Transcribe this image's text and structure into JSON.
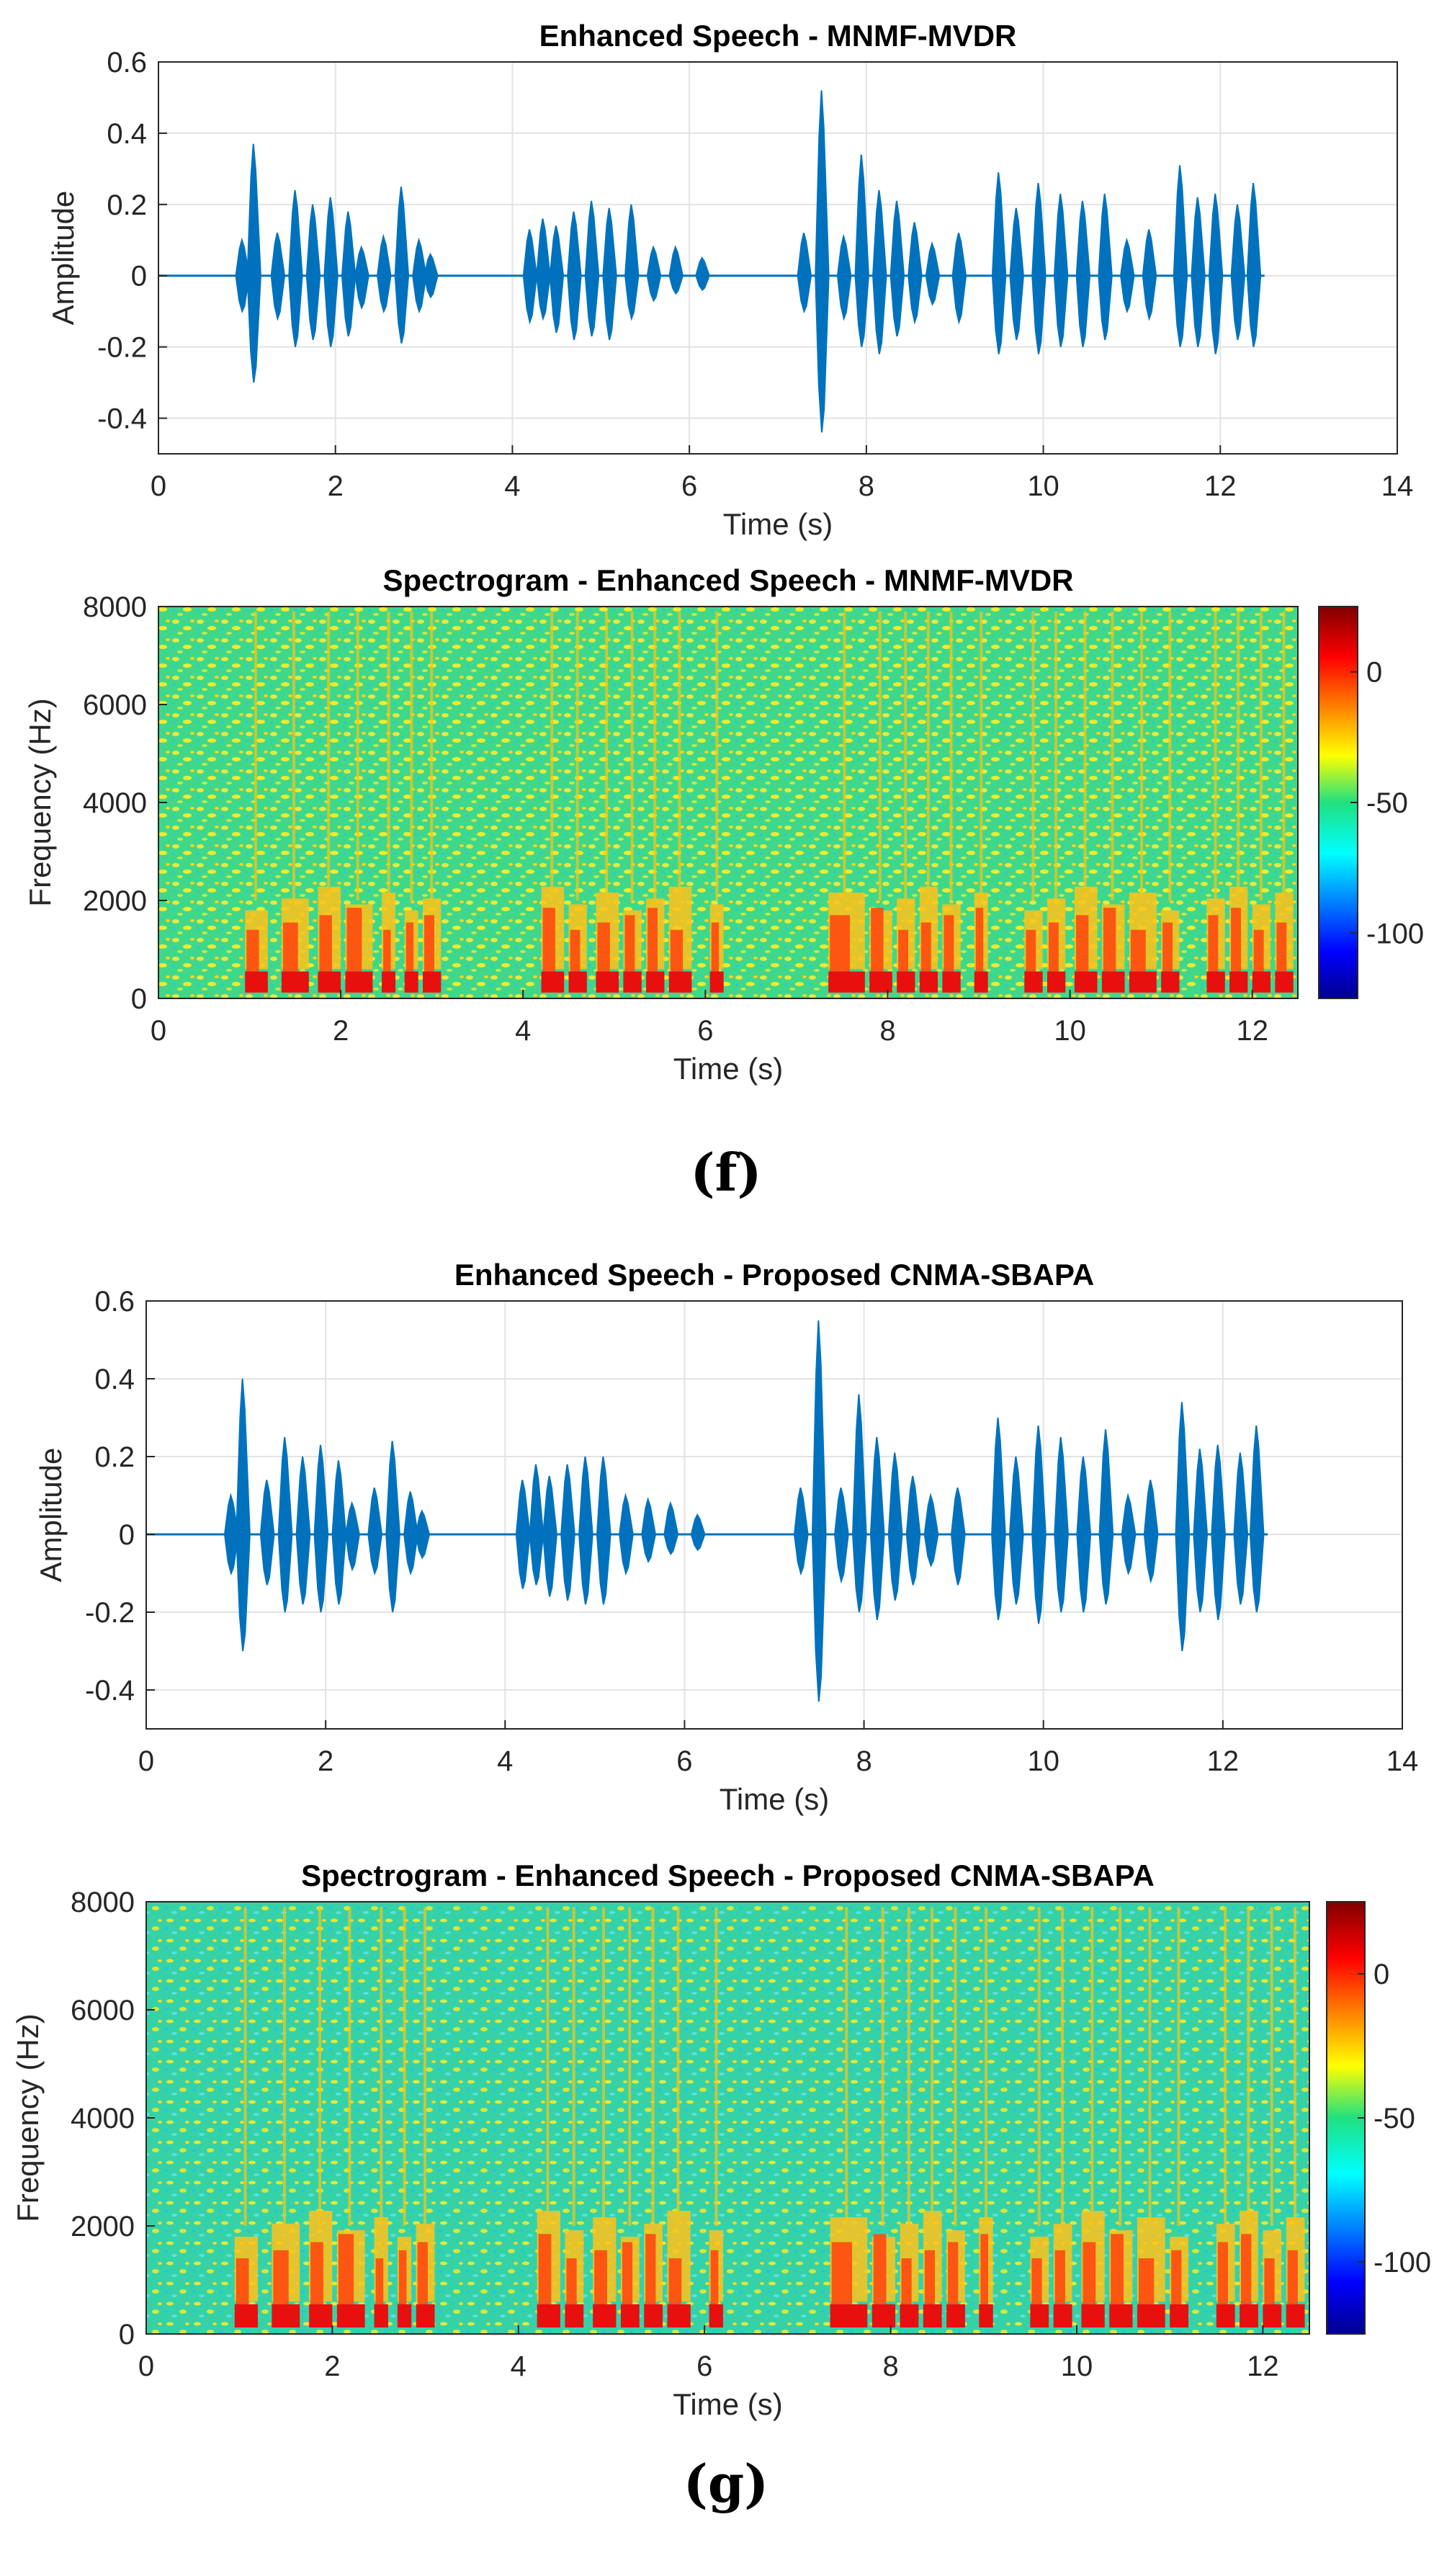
{
  "panels": [
    {
      "label": "(f)"
    },
    {
      "label": "(g)"
    }
  ],
  "chart_data": [
    {
      "type": "line",
      "title": "Enhanced Speech - MNMF-MVDR",
      "xlabel": "Time (s)",
      "ylabel": "Amplitude",
      "xlim": [
        0,
        14
      ],
      "ylim": [
        -0.5,
        0.6
      ],
      "xticks": [
        0,
        2,
        4,
        6,
        8,
        10,
        12,
        14
      ],
      "yticks": [
        -0.4,
        -0.2,
        0,
        0.2,
        0.4,
        0.6
      ],
      "ytick_labels": [
        "-0.4",
        "-0.2",
        "0",
        "0.2",
        "0.4",
        "0.6"
      ],
      "grid": true,
      "color": "#0072BD",
      "series": [
        {
          "x": [
            0.95,
            1.08,
            1.35,
            1.55,
            1.75,
            1.95,
            2.15,
            2.3,
            2.55,
            2.75,
            2.95,
            3.08,
            4.2,
            4.35,
            4.5,
            4.7,
            4.9,
            5.1,
            5.35,
            5.6,
            5.85,
            6.15,
            7.3,
            7.5,
            7.75,
            7.95,
            8.15,
            8.35,
            8.55,
            8.75,
            9.05,
            9.5,
            9.7,
            9.95,
            10.2,
            10.45,
            10.7,
            10.95,
            11.2,
            11.55,
            11.75,
            11.95,
            12.2,
            12.38
          ],
          "upper": [
            0.1,
            0.37,
            0.12,
            0.24,
            0.2,
            0.22,
            0.18,
            0.08,
            0.11,
            0.25,
            0.1,
            0.06,
            0.13,
            0.16,
            0.14,
            0.18,
            0.21,
            0.19,
            0.2,
            0.08,
            0.08,
            0.05,
            0.12,
            0.52,
            0.11,
            0.34,
            0.24,
            0.21,
            0.15,
            0.09,
            0.12,
            0.29,
            0.19,
            0.26,
            0.23,
            0.21,
            0.23,
            0.1,
            0.13,
            0.31,
            0.22,
            0.23,
            0.2,
            0.26
          ],
          "lower": [
            -0.1,
            -0.3,
            -0.12,
            -0.2,
            -0.18,
            -0.2,
            -0.17,
            -0.09,
            -0.1,
            -0.19,
            -0.1,
            -0.06,
            -0.13,
            -0.12,
            -0.16,
            -0.18,
            -0.17,
            -0.18,
            -0.12,
            -0.07,
            -0.05,
            -0.04,
            -0.1,
            -0.44,
            -0.12,
            -0.2,
            -0.22,
            -0.17,
            -0.13,
            -0.08,
            -0.13,
            -0.22,
            -0.18,
            -0.22,
            -0.2,
            -0.2,
            -0.18,
            -0.1,
            -0.12,
            -0.2,
            -0.2,
            -0.22,
            -0.18,
            -0.2
          ]
        }
      ]
    },
    {
      "type": "heatmap",
      "title": "Spectrogram - Enhanced Speech - MNMF-MVDR",
      "xlabel": "Time (s)",
      "ylabel": "Frequency (Hz)",
      "xlim": [
        0,
        12.5
      ],
      "ylim": [
        0,
        8000
      ],
      "xticks": [
        0,
        2,
        4,
        6,
        8,
        10,
        12
      ],
      "yticks": [
        0,
        2000,
        4000,
        6000,
        8000
      ],
      "colorbar": {
        "ticks": [
          0,
          -50,
          -100
        ],
        "range": [
          -125,
          25
        ],
        "colormap": "jet"
      },
      "speech_segments": [
        [
          0.95,
          1.2
        ],
        [
          1.35,
          1.65
        ],
        [
          1.75,
          2.0
        ],
        [
          2.05,
          2.35
        ],
        [
          2.45,
          2.6
        ],
        [
          2.7,
          2.85
        ],
        [
          2.9,
          3.1
        ],
        [
          4.2,
          4.45
        ],
        [
          4.5,
          4.7
        ],
        [
          4.8,
          5.05
        ],
        [
          5.1,
          5.3
        ],
        [
          5.35,
          5.55
        ],
        [
          5.6,
          5.85
        ],
        [
          6.05,
          6.2
        ],
        [
          7.35,
          7.75
        ],
        [
          7.8,
          8.05
        ],
        [
          8.1,
          8.3
        ],
        [
          8.35,
          8.55
        ],
        [
          8.6,
          8.8
        ],
        [
          8.95,
          9.1
        ],
        [
          9.5,
          9.7
        ],
        [
          9.75,
          9.95
        ],
        [
          10.05,
          10.3
        ],
        [
          10.35,
          10.6
        ],
        [
          10.65,
          10.95
        ],
        [
          11.0,
          11.2
        ],
        [
          11.5,
          11.7
        ],
        [
          11.75,
          11.95
        ],
        [
          12.0,
          12.2
        ],
        [
          12.25,
          12.45
        ]
      ]
    },
    {
      "type": "line",
      "title": "Enhanced Speech - Proposed CNMA-SBAPA",
      "xlabel": "Time (s)",
      "ylabel": "Amplitude",
      "xlim": [
        0,
        14
      ],
      "ylim": [
        -0.5,
        0.6
      ],
      "xticks": [
        0,
        2,
        4,
        6,
        8,
        10,
        12,
        14
      ],
      "yticks": [
        -0.4,
        -0.2,
        0,
        0.2,
        0.4,
        0.6
      ],
      "ytick_labels": [
        "-0.4",
        "-0.2",
        "0",
        "0.2",
        "0.4",
        "0.6"
      ],
      "grid": true,
      "color": "#0072BD",
      "series": [
        {
          "x": [
            0.95,
            1.08,
            1.35,
            1.55,
            1.75,
            1.95,
            2.15,
            2.3,
            2.55,
            2.75,
            2.95,
            3.08,
            4.2,
            4.35,
            4.5,
            4.7,
            4.9,
            5.1,
            5.35,
            5.6,
            5.85,
            6.15,
            7.3,
            7.5,
            7.75,
            7.95,
            8.15,
            8.35,
            8.55,
            8.75,
            9.05,
            9.5,
            9.7,
            9.95,
            10.2,
            10.45,
            10.7,
            10.95,
            11.2,
            11.55,
            11.75,
            11.95,
            12.2,
            12.38
          ],
          "upper": [
            0.1,
            0.4,
            0.14,
            0.25,
            0.2,
            0.23,
            0.19,
            0.08,
            0.12,
            0.24,
            0.11,
            0.06,
            0.14,
            0.18,
            0.15,
            0.18,
            0.2,
            0.2,
            0.1,
            0.09,
            0.08,
            0.05,
            0.12,
            0.55,
            0.12,
            0.36,
            0.25,
            0.21,
            0.15,
            0.1,
            0.12,
            0.3,
            0.2,
            0.28,
            0.25,
            0.2,
            0.27,
            0.1,
            0.14,
            0.34,
            0.22,
            0.23,
            0.21,
            0.28
          ],
          "lower": [
            -0.1,
            -0.3,
            -0.13,
            -0.2,
            -0.18,
            -0.2,
            -0.18,
            -0.09,
            -0.1,
            -0.2,
            -0.1,
            -0.06,
            -0.14,
            -0.13,
            -0.16,
            -0.17,
            -0.18,
            -0.18,
            -0.1,
            -0.07,
            -0.05,
            -0.04,
            -0.1,
            -0.43,
            -0.12,
            -0.2,
            -0.22,
            -0.17,
            -0.13,
            -0.08,
            -0.13,
            -0.22,
            -0.18,
            -0.23,
            -0.2,
            -0.2,
            -0.18,
            -0.1,
            -0.12,
            -0.3,
            -0.2,
            -0.22,
            -0.18,
            -0.2
          ]
        }
      ]
    },
    {
      "type": "heatmap",
      "title": "Spectrogram - Enhanced Speech - Proposed CNMA-SBAPA",
      "xlabel": "Time (s)",
      "ylabel": "Frequency (Hz)",
      "xlim": [
        0,
        12.5
      ],
      "ylim": [
        0,
        8000
      ],
      "xticks": [
        0,
        2,
        4,
        6,
        8,
        10,
        12
      ],
      "yticks": [
        0,
        2000,
        4000,
        6000,
        8000
      ],
      "colorbar": {
        "ticks": [
          0,
          -50,
          -100
        ],
        "range": [
          -125,
          25
        ],
        "colormap": "jet"
      },
      "speech_segments": [
        [
          0.95,
          1.2
        ],
        [
          1.35,
          1.65
        ],
        [
          1.75,
          2.0
        ],
        [
          2.05,
          2.35
        ],
        [
          2.45,
          2.6
        ],
        [
          2.7,
          2.85
        ],
        [
          2.9,
          3.1
        ],
        [
          4.2,
          4.45
        ],
        [
          4.5,
          4.7
        ],
        [
          4.8,
          5.05
        ],
        [
          5.1,
          5.3
        ],
        [
          5.35,
          5.55
        ],
        [
          5.6,
          5.85
        ],
        [
          6.05,
          6.2
        ],
        [
          7.35,
          7.75
        ],
        [
          7.8,
          8.05
        ],
        [
          8.1,
          8.3
        ],
        [
          8.35,
          8.55
        ],
        [
          8.6,
          8.8
        ],
        [
          8.95,
          9.1
        ],
        [
          9.5,
          9.7
        ],
        [
          9.75,
          9.95
        ],
        [
          10.05,
          10.3
        ],
        [
          10.35,
          10.6
        ],
        [
          10.65,
          10.95
        ],
        [
          11.0,
          11.2
        ],
        [
          11.5,
          11.7
        ],
        [
          11.75,
          11.95
        ],
        [
          12.0,
          12.2
        ],
        [
          12.25,
          12.45
        ]
      ]
    }
  ]
}
